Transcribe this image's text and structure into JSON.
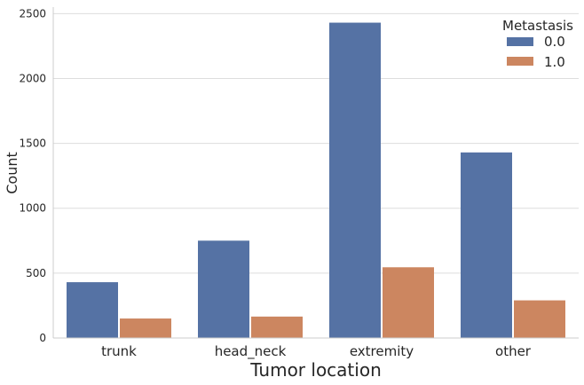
{
  "chart_data": {
    "type": "bar",
    "categories": [
      "trunk",
      "head_neck",
      "extremity",
      "other"
    ],
    "series": [
      {
        "name": "0.0",
        "values": [
          430,
          750,
          2430,
          1430
        ]
      },
      {
        "name": "1.0",
        "values": [
          150,
          165,
          545,
          290
        ]
      }
    ],
    "xlabel": "Tumor location",
    "ylabel": "Count",
    "ylim": [
      0,
      2550
    ],
    "yticks": [
      0,
      500,
      1000,
      1500,
      2000,
      2500
    ],
    "grid": "horizontal",
    "legend": {
      "title": "Metastasis",
      "placement": "top-right"
    },
    "colors": [
      "#5572a4",
      "#cc8660"
    ]
  }
}
